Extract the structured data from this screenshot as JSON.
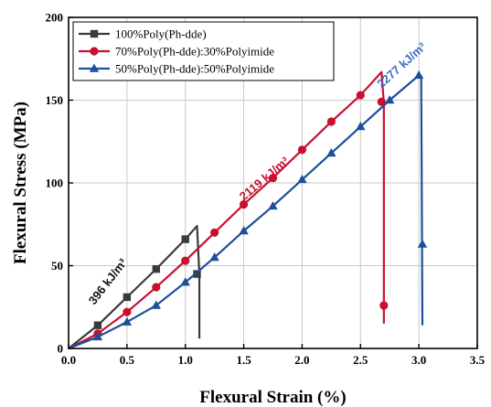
{
  "chart_data": {
    "type": "line",
    "title": "",
    "xlabel": "Flexural Strain (%)",
    "ylabel": "Flexural Stress (MPa)",
    "xlim": [
      0,
      3.5
    ],
    "ylim": [
      0,
      200
    ],
    "xticks": [
      "0.0",
      "0.5",
      "1.0",
      "1.5",
      "2.0",
      "2.5",
      "3.0",
      "3.5"
    ],
    "yticks": [
      "0",
      "50",
      "100",
      "150",
      "200"
    ],
    "grid": true,
    "legend_position": "top-left",
    "series": [
      {
        "name": "100%Poly(Ph-dde)",
        "color": "#3a3a3a",
        "marker": "square",
        "curve": [
          [
            0,
            0
          ],
          [
            0.25,
            14
          ],
          [
            0.5,
            31
          ],
          [
            0.75,
            48
          ],
          [
            1.0,
            66
          ],
          [
            1.1,
            74
          ],
          [
            1.12,
            45
          ],
          [
            1.12,
            6
          ]
        ],
        "markers": [
          [
            0.25,
            14
          ],
          [
            0.5,
            31
          ],
          [
            0.75,
            48
          ],
          [
            1.0,
            66
          ],
          [
            1.1,
            45
          ]
        ]
      },
      {
        "name": "70%Poly(Ph-dde):30%Polyimide",
        "color": "#c8102e",
        "marker": "circle",
        "curve": [
          [
            0,
            0
          ],
          [
            0.25,
            9
          ],
          [
            0.5,
            22
          ],
          [
            0.75,
            37
          ],
          [
            1.0,
            53
          ],
          [
            1.25,
            70
          ],
          [
            1.5,
            87
          ],
          [
            1.75,
            103
          ],
          [
            2.0,
            120
          ],
          [
            2.25,
            137
          ],
          [
            2.5,
            153
          ],
          [
            2.68,
            167
          ],
          [
            2.7,
            148
          ],
          [
            2.7,
            15
          ]
        ],
        "markers": [
          [
            0.25,
            9
          ],
          [
            0.5,
            22
          ],
          [
            0.75,
            37
          ],
          [
            1.0,
            53
          ],
          [
            1.25,
            70
          ],
          [
            1.5,
            87
          ],
          [
            1.75,
            103
          ],
          [
            2.0,
            120
          ],
          [
            2.25,
            137
          ],
          [
            2.5,
            153
          ],
          [
            2.68,
            149
          ],
          [
            2.7,
            26
          ]
        ]
      },
      {
        "name": "50%Poly(Ph-dde):50%Polyimide",
        "color": "#1f4e9c",
        "marker": "triangle",
        "curve": [
          [
            0,
            0
          ],
          [
            0.25,
            7
          ],
          [
            0.5,
            16
          ],
          [
            0.75,
            26
          ],
          [
            1.0,
            40
          ],
          [
            1.25,
            55
          ],
          [
            1.5,
            71
          ],
          [
            1.75,
            86
          ],
          [
            2.0,
            102
          ],
          [
            2.25,
            118
          ],
          [
            2.5,
            134
          ],
          [
            2.75,
            150
          ],
          [
            3.0,
            165
          ],
          [
            3.02,
            164
          ],
          [
            3.03,
            14
          ]
        ],
        "markers": [
          [
            0.25,
            7
          ],
          [
            0.5,
            16
          ],
          [
            0.75,
            26
          ],
          [
            1.0,
            40
          ],
          [
            1.25,
            55
          ],
          [
            1.5,
            71
          ],
          [
            1.75,
            86
          ],
          [
            2.0,
            102
          ],
          [
            2.25,
            118
          ],
          [
            2.5,
            134
          ],
          [
            2.75,
            150
          ],
          [
            3.0,
            165
          ],
          [
            3.03,
            63
          ]
        ]
      }
    ],
    "annotations": [
      {
        "text": "396 kJ/m³",
        "color": "#111111",
        "x": 0.22,
        "y": 26,
        "angle": -52
      },
      {
        "text": "2119 kJ/m³",
        "color": "#c8102e",
        "x": 1.5,
        "y": 89,
        "angle": -40
      },
      {
        "text": "2277 kJ/m³",
        "color": "#3a6fc4",
        "x": 2.68,
        "y": 157,
        "angle": -42
      }
    ]
  }
}
